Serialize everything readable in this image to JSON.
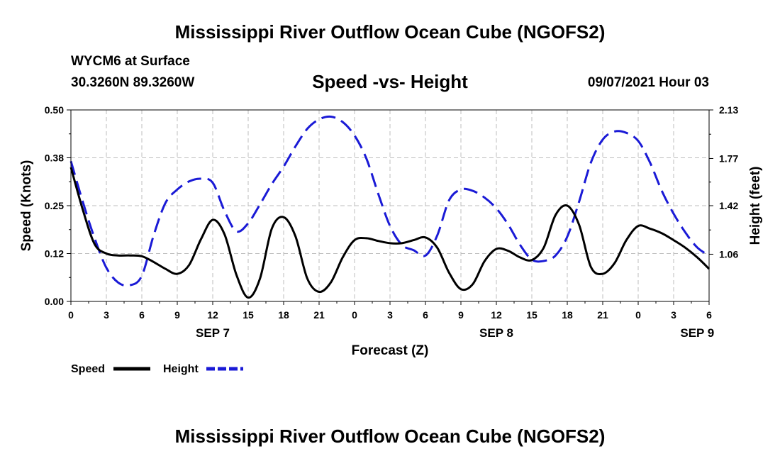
{
  "page": {
    "title_top": "Mississippi River Outflow Ocean Cube (NGOFS2)",
    "title_bottom": "Mississippi River Outflow Ocean Cube (NGOFS2)",
    "station": "WYCM6 at Surface",
    "coords": "30.3260N  89.3260W",
    "plot_title": "Speed -vs- Height",
    "datetime": "09/07/2021 Hour 03"
  },
  "chart_data": {
    "type": "line",
    "title": "Speed -vs- Height",
    "xlabel": "Forecast (Z)",
    "ylabel_left": "Speed (Knots)",
    "ylabel_right": "Height (feet)",
    "x_range_hours": [
      0,
      54
    ],
    "x_ticks": [
      {
        "h": 0,
        "label": "0"
      },
      {
        "h": 3,
        "label": "3"
      },
      {
        "h": 6,
        "label": "6"
      },
      {
        "h": 9,
        "label": "9"
      },
      {
        "h": 12,
        "label": "12"
      },
      {
        "h": 15,
        "label": "15"
      },
      {
        "h": 18,
        "label": "18"
      },
      {
        "h": 21,
        "label": "21"
      },
      {
        "h": 24,
        "label": "0"
      },
      {
        "h": 27,
        "label": "3"
      },
      {
        "h": 30,
        "label": "6"
      },
      {
        "h": 33,
        "label": "9"
      },
      {
        "h": 36,
        "label": "12"
      },
      {
        "h": 39,
        "label": "15"
      },
      {
        "h": 42,
        "label": "18"
      },
      {
        "h": 45,
        "label": "21"
      },
      {
        "h": 48,
        "label": "0"
      },
      {
        "h": 51,
        "label": "3"
      },
      {
        "h": 54,
        "label": "6"
      }
    ],
    "date_labels": [
      {
        "h": 12,
        "label": "SEP 7"
      },
      {
        "h": 36,
        "label": "SEP 8"
      },
      {
        "h": 53,
        "label": "SEP 9"
      }
    ],
    "y_left": {
      "range": [
        0,
        0.5
      ],
      "ticks": [
        0,
        0.125,
        0.25,
        0.375,
        0.5
      ],
      "tick_labels": [
        "0.00",
        "0.12",
        "0.25",
        "0.38",
        "0.50"
      ]
    },
    "y_right": {
      "range": [
        0.71,
        2.13
      ],
      "ticks": [
        1.06,
        1.42,
        1.77,
        2.13
      ],
      "tick_labels": [
        "1.06",
        "1.42",
        "1.77",
        "2.13"
      ]
    },
    "grid": true,
    "series": [
      {
        "name": "Speed",
        "axis": "left",
        "color": "#000000",
        "dash": "solid",
        "x": [
          0,
          1,
          2,
          3,
          4,
          5,
          6,
          7,
          8,
          9,
          10,
          11,
          12,
          13,
          14,
          15,
          16,
          17,
          18,
          19,
          20,
          21,
          22,
          23,
          24,
          25,
          26,
          27,
          28,
          29,
          30,
          31,
          32,
          33,
          34,
          35,
          36,
          37,
          38,
          39,
          40,
          41,
          42,
          43,
          44,
          45,
          46,
          47,
          48,
          49,
          50,
          51,
          52,
          53,
          54
        ],
        "y": [
          0.35,
          0.24,
          0.15,
          0.125,
          0.12,
          0.12,
          0.118,
          0.103,
          0.085,
          0.072,
          0.095,
          0.162,
          0.213,
          0.175,
          0.07,
          0.01,
          0.06,
          0.19,
          0.22,
          0.17,
          0.06,
          0.025,
          0.05,
          0.115,
          0.16,
          0.165,
          0.158,
          0.152,
          0.152,
          0.16,
          0.167,
          0.14,
          0.075,
          0.032,
          0.045,
          0.105,
          0.137,
          0.132,
          0.115,
          0.108,
          0.14,
          0.225,
          0.25,
          0.2,
          0.09,
          0.072,
          0.1,
          0.16,
          0.197,
          0.19,
          0.178,
          0.16,
          0.14,
          0.115,
          0.085
        ]
      },
      {
        "name": "Height",
        "axis": "right",
        "color": "#1a1ad6",
        "dash": "dashed",
        "x": [
          0,
          1,
          2,
          3,
          4,
          5,
          6,
          7,
          8,
          9,
          10,
          11,
          12,
          13,
          14,
          15,
          16,
          17,
          18,
          19,
          20,
          21,
          22,
          23,
          24,
          25,
          26,
          27,
          28,
          29,
          30,
          31,
          32,
          33,
          34,
          35,
          36,
          37,
          38,
          39,
          40,
          41,
          42,
          43,
          44,
          45,
          46,
          47,
          48,
          49,
          50,
          51,
          52,
          53,
          54
        ],
        "y": [
          1.75,
          1.45,
          1.18,
          0.96,
          0.85,
          0.83,
          0.9,
          1.2,
          1.44,
          1.54,
          1.6,
          1.62,
          1.59,
          1.38,
          1.23,
          1.29,
          1.43,
          1.58,
          1.71,
          1.86,
          1.99,
          2.06,
          2.08,
          2.04,
          1.94,
          1.77,
          1.51,
          1.27,
          1.13,
          1.09,
          1.05,
          1.2,
          1.46,
          1.54,
          1.53,
          1.48,
          1.4,
          1.28,
          1.13,
          1.02,
          1.01,
          1.05,
          1.19,
          1.45,
          1.74,
          1.91,
          1.97,
          1.96,
          1.9,
          1.74,
          1.53,
          1.36,
          1.22,
          1.11,
          1.05
        ]
      }
    ],
    "legend": [
      {
        "label": "Speed",
        "color": "#000000",
        "dash": "solid"
      },
      {
        "label": "Height",
        "color": "#1a1ad6",
        "dash": "dashed"
      }
    ]
  }
}
